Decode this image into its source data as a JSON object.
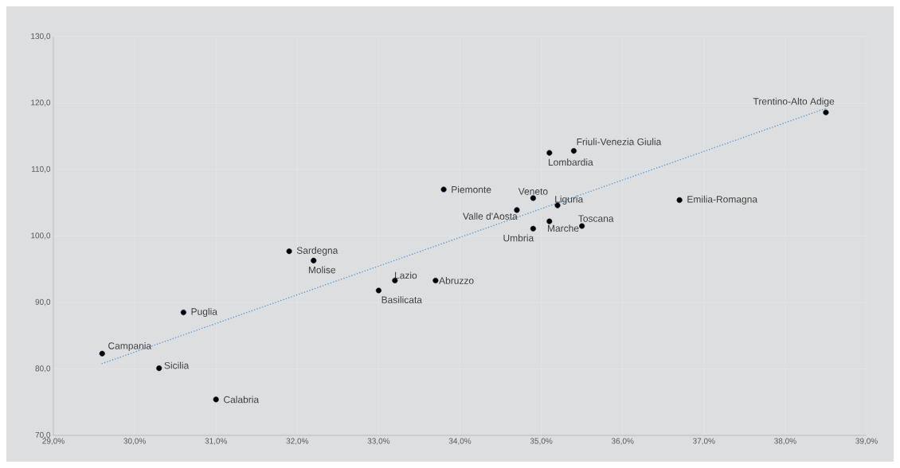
{
  "chart_data": {
    "type": "scatter",
    "xlim": [
      29,
      39
    ],
    "ylim": [
      70,
      130
    ],
    "xticks": [
      {
        "value": 29,
        "label": "29,0%"
      },
      {
        "value": 30,
        "label": "30,0%"
      },
      {
        "value": 31,
        "label": "31,0%"
      },
      {
        "value": 32,
        "label": "32,0%"
      },
      {
        "value": 33,
        "label": "33,0%"
      },
      {
        "value": 34,
        "label": "34,0%"
      },
      {
        "value": 35,
        "label": "35,0%"
      },
      {
        "value": 36,
        "label": "36,0%"
      },
      {
        "value": 37,
        "label": "37,0%"
      },
      {
        "value": 38,
        "label": "38,0%"
      },
      {
        "value": 39,
        "label": "39,0%"
      }
    ],
    "yticks": [
      {
        "value": 70,
        "label": "70,0"
      },
      {
        "value": 80,
        "label": "80,0"
      },
      {
        "value": 90,
        "label": "90,0"
      },
      {
        "value": 100,
        "label": "100,0"
      },
      {
        "value": 110,
        "label": "110,0"
      },
      {
        "value": 120,
        "label": "120,0"
      },
      {
        "value": 130,
        "label": "130,0"
      }
    ],
    "grid": true,
    "series": [
      {
        "color": "#000000",
        "marker": "circle",
        "x": [
          29.6,
          30.3,
          31.0,
          30.6,
          31.9,
          32.2,
          33.0,
          33.2,
          33.7,
          33.8,
          34.7,
          34.9,
          34.9,
          35.1,
          35.4,
          35.2,
          35.1,
          35.5,
          36.7,
          38.5
        ],
        "values": [
          82.3,
          80.1,
          75.4,
          88.5,
          97.7,
          96.3,
          91.8,
          93.3,
          93.3,
          107.0,
          103.9,
          105.7,
          101.1,
          112.5,
          112.8,
          104.6,
          102.2,
          101.5,
          105.4,
          118.6
        ]
      },
      {
        "type": "line",
        "color": "#5b9bd5",
        "line_style": "dotted",
        "marker": "none",
        "x": [
          29.6,
          38.5
        ],
        "values": [
          80.8,
          119.2
        ]
      }
    ],
    "annotations": [
      {
        "text": "Campania",
        "x": 29.6,
        "y": 82.3
      },
      {
        "text": "Sicilia",
        "x": 30.3,
        "y": 80.1
      },
      {
        "text": "Calabria",
        "x": 31.0,
        "y": 75.4
      },
      {
        "text": "Puglia",
        "x": 30.6,
        "y": 88.5
      },
      {
        "text": "Sardegna",
        "x": 31.9,
        "y": 97.7
      },
      {
        "text": "Molise",
        "x": 32.2,
        "y": 96.3
      },
      {
        "text": "Basilicata",
        "x": 33.0,
        "y": 91.8
      },
      {
        "text": "Lazio",
        "x": 33.2,
        "y": 93.3
      },
      {
        "text": "Abruzzo",
        "x": 33.7,
        "y": 93.3
      },
      {
        "text": "Piemonte",
        "x": 33.8,
        "y": 107.0
      },
      {
        "text": "Valle d'Aosta",
        "x": 34.7,
        "y": 103.9
      },
      {
        "text": "Veneto",
        "x": 34.9,
        "y": 105.7
      },
      {
        "text": "Umbria",
        "x": 34.9,
        "y": 101.1
      },
      {
        "text": "Lombardia",
        "x": 35.1,
        "y": 112.5
      },
      {
        "text": "Friuli-Venezia Giulia",
        "x": 35.4,
        "y": 112.8
      },
      {
        "text": "Liguria",
        "x": 35.2,
        "y": 104.6
      },
      {
        "text": "Marche",
        "x": 35.1,
        "y": 102.2
      },
      {
        "text": "Toscana",
        "x": 35.5,
        "y": 101.5
      },
      {
        "text": "Emilia-Romagna",
        "x": 36.7,
        "y": 105.4
      },
      {
        "text": "Trentino-Alto Adige",
        "x": 38.5,
        "y": 118.6
      }
    ]
  }
}
